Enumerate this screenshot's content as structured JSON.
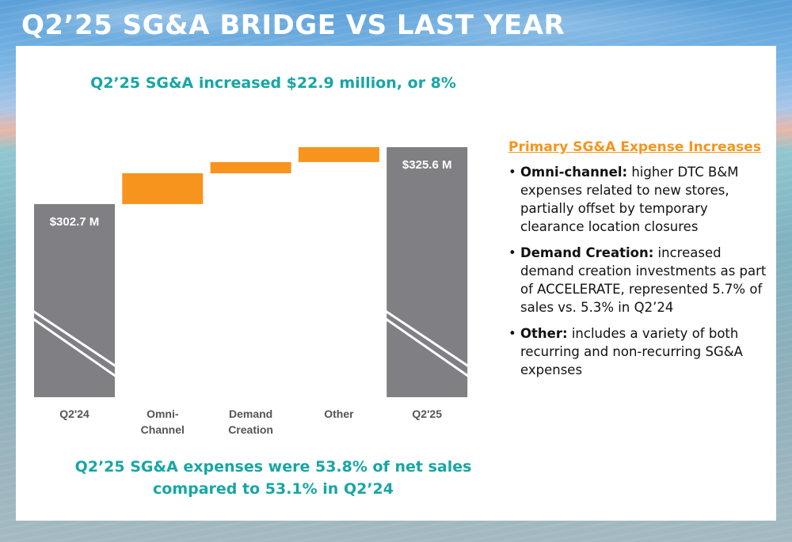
{
  "slide": {
    "title": "Q2’25 SG&A BRIDGE VS LAST YEAR"
  },
  "headline_top": "Q2’25 SG&A increased $22.9 million, or 8%",
  "headline_bottom": [
    "Q2’25 SG&A expenses were 53.8% of net sales",
    "compared to 53.1% in Q2’24"
  ],
  "colors": {
    "total_bar": "#808084",
    "increase_bar": "#f7941d",
    "accent_teal": "#17a6a4",
    "accent_orange": "#f7941d"
  },
  "chart_data": {
    "type": "bar",
    "subtype": "waterfall",
    "title": "Q2’25 SG&A increased $22.9 million, or 8%",
    "xlabel": "",
    "ylabel": "",
    "units": "$ millions",
    "axis_break": true,
    "grid": false,
    "categories": [
      [
        "Q2'24"
      ],
      [
        "Omni-",
        "Channel"
      ],
      [
        "Demand",
        "Creation"
      ],
      [
        "Other"
      ],
      [
        "Q2'25"
      ]
    ],
    "bars": [
      {
        "name": "Q2'24",
        "kind": "total",
        "value": 302.7,
        "label": "$302.7 M"
      },
      {
        "name": "Omni-Channel",
        "kind": "increase",
        "value": 12.4,
        "label": ""
      },
      {
        "name": "Demand Creation",
        "kind": "increase",
        "value": 4.5,
        "label": ""
      },
      {
        "name": "Other",
        "kind": "increase",
        "value": 6.0,
        "label": ""
      },
      {
        "name": "Q2'25",
        "kind": "total",
        "value": 325.6,
        "label": "$325.6 M"
      }
    ],
    "total_change": 22.9,
    "ylim": [
      225,
      330
    ]
  },
  "sidebar": {
    "heading": "Primary SG&A Expense Increases",
    "bullets": [
      {
        "lead": "Omni-channel:",
        "text": " higher DTC B&M expenses related to new stores, partially offset by temporary clearance location closures"
      },
      {
        "lead": "Demand Creation:",
        "text": "  increased demand creation investments as part of ACCELERATE,  represented 5.7% of sales vs. 5.3% in Q2’24"
      },
      {
        "lead": "Other:",
        "text": " includes a variety of both recurring and non-recurring SG&A expenses"
      }
    ]
  }
}
